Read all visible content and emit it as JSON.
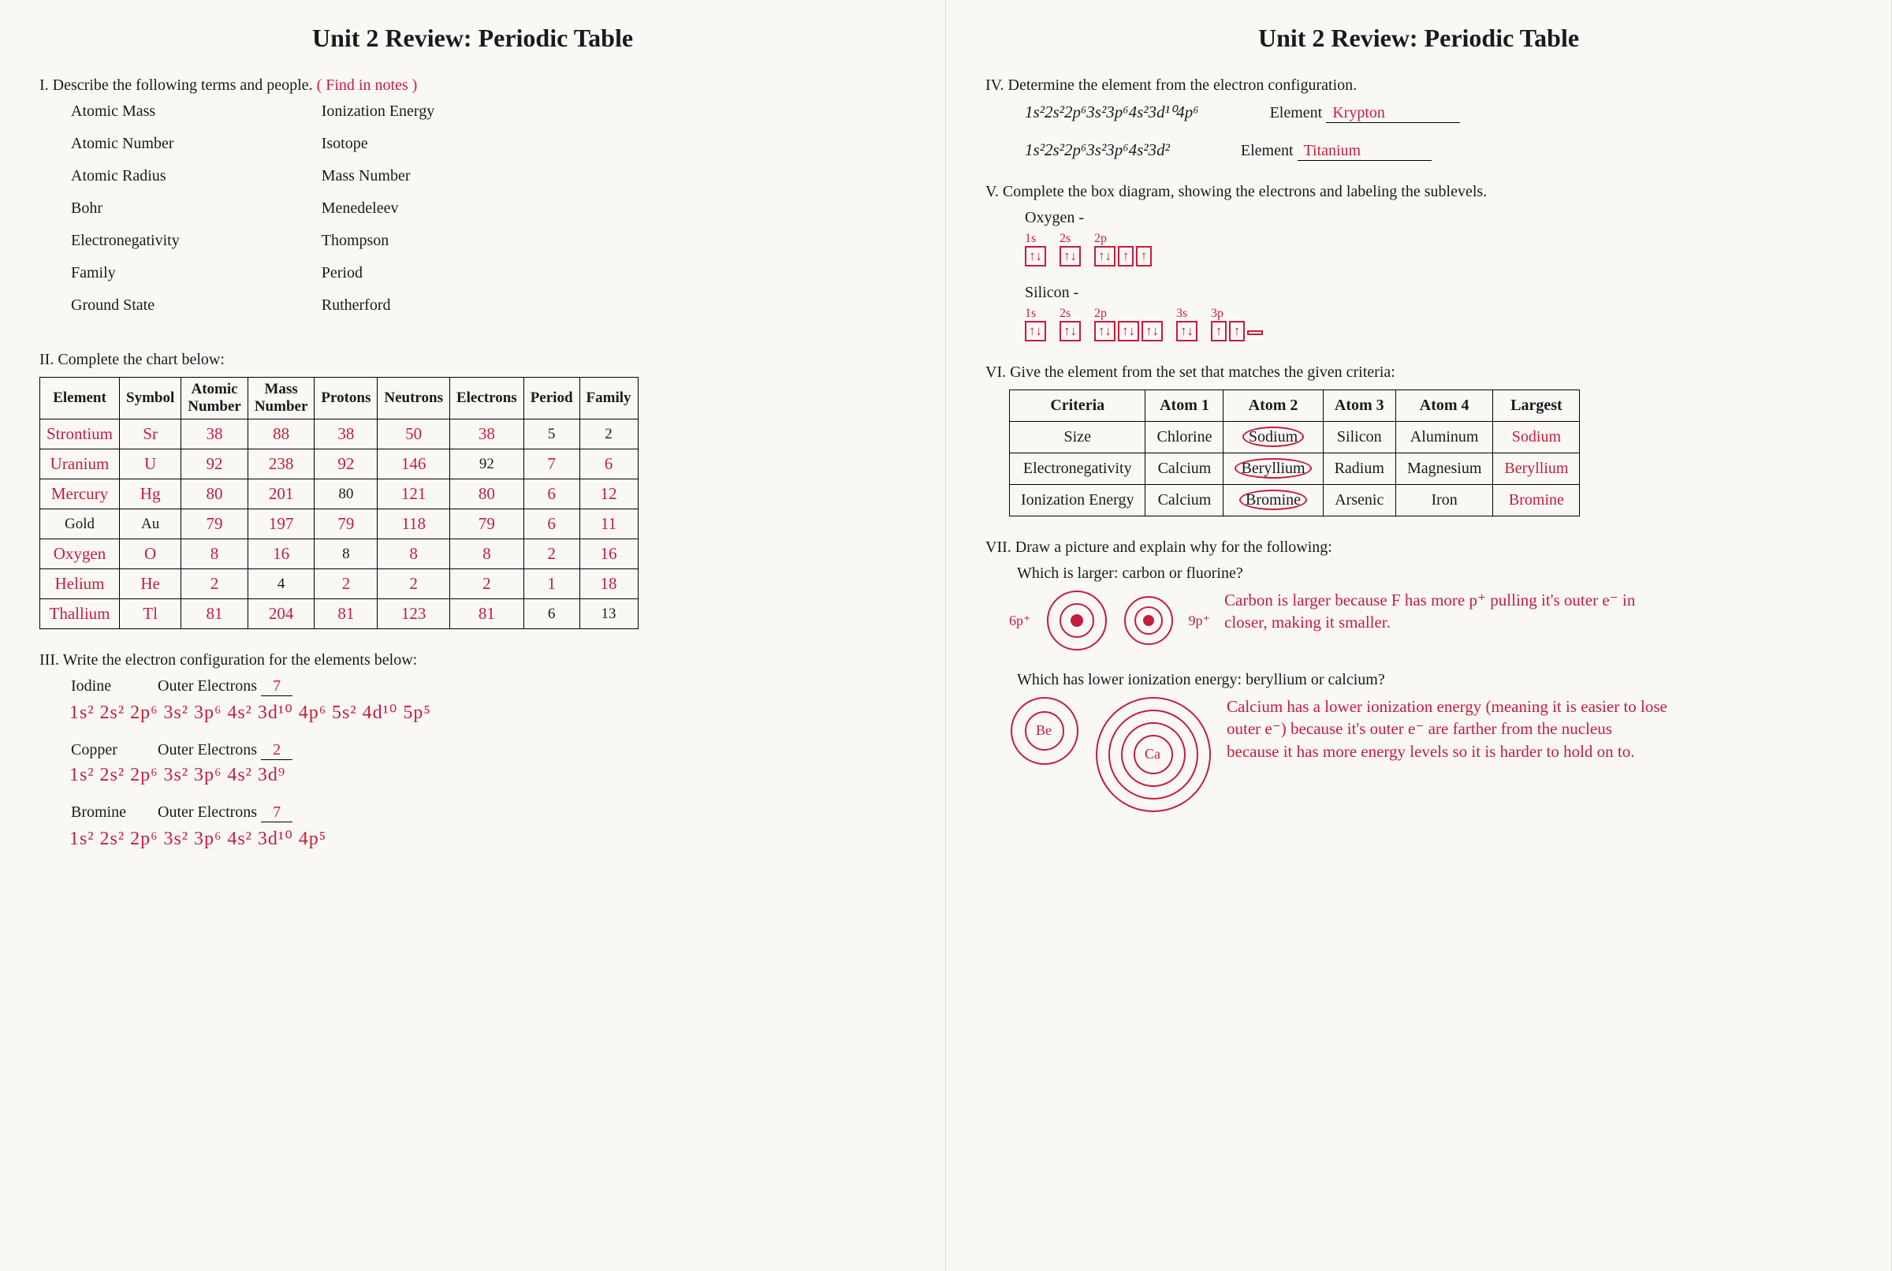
{
  "title": "Unit 2 Review:  Periodic Table",
  "s1": {
    "head": "I.  Describe the following terms and people.",
    "handnote": "( Find in notes )",
    "left": [
      "Atomic Mass",
      "Atomic Number",
      "Atomic Radius",
      "Bohr",
      "Electronegativity",
      "Family",
      "Ground State"
    ],
    "right": [
      "Ionization Energy",
      "Isotope",
      "Mass Number",
      "Menedeleev",
      "Thompson",
      "Period",
      "Rutherford"
    ]
  },
  "s2": {
    "head": "II.  Complete the chart below:",
    "headers": [
      "Element",
      "Symbol",
      "Atomic Number",
      "Mass Number",
      "Protons",
      "Neutrons",
      "Electrons",
      "Period",
      "Family"
    ],
    "rows": [
      {
        "c": [
          "Strontium",
          "Sr",
          "38",
          "88",
          "38",
          "50",
          "38",
          "5",
          "2"
        ],
        "hand": [
          1,
          1,
          1,
          1,
          1,
          1,
          1,
          0,
          0
        ]
      },
      {
        "c": [
          "Uranium",
          "U",
          "92",
          "238",
          "92",
          "146",
          "92",
          "7",
          "6"
        ],
        "hand": [
          1,
          1,
          1,
          1,
          1,
          1,
          0,
          1,
          1
        ]
      },
      {
        "c": [
          "Mercury",
          "Hg",
          "80",
          "201",
          "80",
          "121",
          "80",
          "6",
          "12"
        ],
        "hand": [
          1,
          1,
          1,
          1,
          0,
          1,
          1,
          1,
          1
        ]
      },
      {
        "c": [
          "Gold",
          "Au",
          "79",
          "197",
          "79",
          "118",
          "79",
          "6",
          "11"
        ],
        "hand": [
          0,
          0,
          1,
          1,
          1,
          1,
          1,
          1,
          1
        ]
      },
      {
        "c": [
          "Oxygen",
          "O",
          "8",
          "16",
          "8",
          "8",
          "8",
          "2",
          "16"
        ],
        "hand": [
          1,
          1,
          1,
          1,
          0,
          1,
          1,
          1,
          1
        ]
      },
      {
        "c": [
          "Helium",
          "He",
          "2",
          "4",
          "2",
          "2",
          "2",
          "1",
          "18"
        ],
        "hand": [
          1,
          1,
          1,
          0,
          1,
          1,
          1,
          1,
          1
        ]
      },
      {
        "c": [
          "Thallium",
          "Tl",
          "81",
          "204",
          "81",
          "123",
          "81",
          "6",
          "13"
        ],
        "hand": [
          1,
          1,
          1,
          1,
          1,
          1,
          1,
          0,
          0
        ]
      }
    ]
  },
  "s3": {
    "head": "III.  Write the electron configuration for the elements below:",
    "items": [
      {
        "name": "Iodine",
        "outer": "7",
        "conf": "1s² 2s² 2p⁶ 3s² 3p⁶ 4s² 3d¹⁰ 4p⁶ 5s² 4d¹⁰ 5p⁵"
      },
      {
        "name": "Copper",
        "outer": "2",
        "conf": "1s² 2s² 2p⁶ 3s² 3p⁶ 4s² 3d⁹"
      },
      {
        "name": "Bromine",
        "outer": "7",
        "conf": "1s² 2s² 2p⁶ 3s² 3p⁶ 4s² 3d¹⁰ 4p⁵"
      }
    ],
    "outer_label": "Outer Electrons"
  },
  "s4": {
    "head": "IV.  Determine the element from the electron configuration.",
    "el_label": "Element",
    "rows": [
      {
        "formula": "1s²2s²2p⁶3s²3p⁶4s²3d¹⁰4p⁶",
        "ans": "Krypton"
      },
      {
        "formula": "1s²2s²2p⁶3s²3p⁶4s²3d²",
        "ans": "Titanium"
      }
    ]
  },
  "s5": {
    "head": "V.  Complete the box diagram, showing the electrons and labeling the sublevels.",
    "items": [
      {
        "name": "Oxygen -",
        "groups": [
          {
            "lab": "1s",
            "b": [
              "↑↓"
            ]
          },
          {
            "lab": "2s",
            "b": [
              "↑↓"
            ]
          },
          {
            "lab": "2p",
            "b": [
              "↑↓",
              "↑",
              "↑"
            ]
          }
        ]
      },
      {
        "name": "Silicon -",
        "groups": [
          {
            "lab": "1s",
            "b": [
              "↑↓"
            ]
          },
          {
            "lab": "2s",
            "b": [
              "↑↓"
            ]
          },
          {
            "lab": "2p",
            "b": [
              "↑↓",
              "↑↓",
              "↑↓"
            ]
          },
          {
            "lab": "3s",
            "b": [
              "↑↓"
            ]
          },
          {
            "lab": "3p",
            "b": [
              "↑",
              "↑",
              " "
            ]
          }
        ]
      }
    ]
  },
  "s6": {
    "head": "VI.  Give the element from the set that matches the given criteria:",
    "headers": [
      "Criteria",
      "Atom 1",
      "Atom 2",
      "Atom 3",
      "Atom 4",
      "Largest"
    ],
    "rows": [
      {
        "c": [
          "Size",
          "Chlorine",
          "Sodium",
          "Silicon",
          "Aluminum",
          "Sodium"
        ],
        "circ": 2
      },
      {
        "c": [
          "Electronegativity",
          "Calcium",
          "Beryllium",
          "Radium",
          "Magnesium",
          "Beryllium"
        ],
        "circ": 2
      },
      {
        "c": [
          "Ionization Energy",
          "Calcium",
          "Bromine",
          "Arsenic",
          "Iron",
          "Bromine"
        ],
        "circ": 2
      }
    ]
  },
  "s7": {
    "head": "VII.  Draw a picture and explain why for the following:",
    "q1": "Which is larger:  carbon or fluorine?",
    "a1_left": "6p⁺",
    "a1_right": "9p⁺",
    "a1": "Carbon is larger because F has more p⁺ pulling it's outer e⁻ in closer, making it smaller.",
    "q2": "Which has lower ionization energy:  beryllium or calcium?",
    "a2": "Calcium has a lower ionization energy (meaning it is easier to lose outer e⁻) because it's outer e⁻ are farther from the nucleus because it has more energy levels so it is harder to hold on to.",
    "be": "Be",
    "ca": "Ca"
  }
}
